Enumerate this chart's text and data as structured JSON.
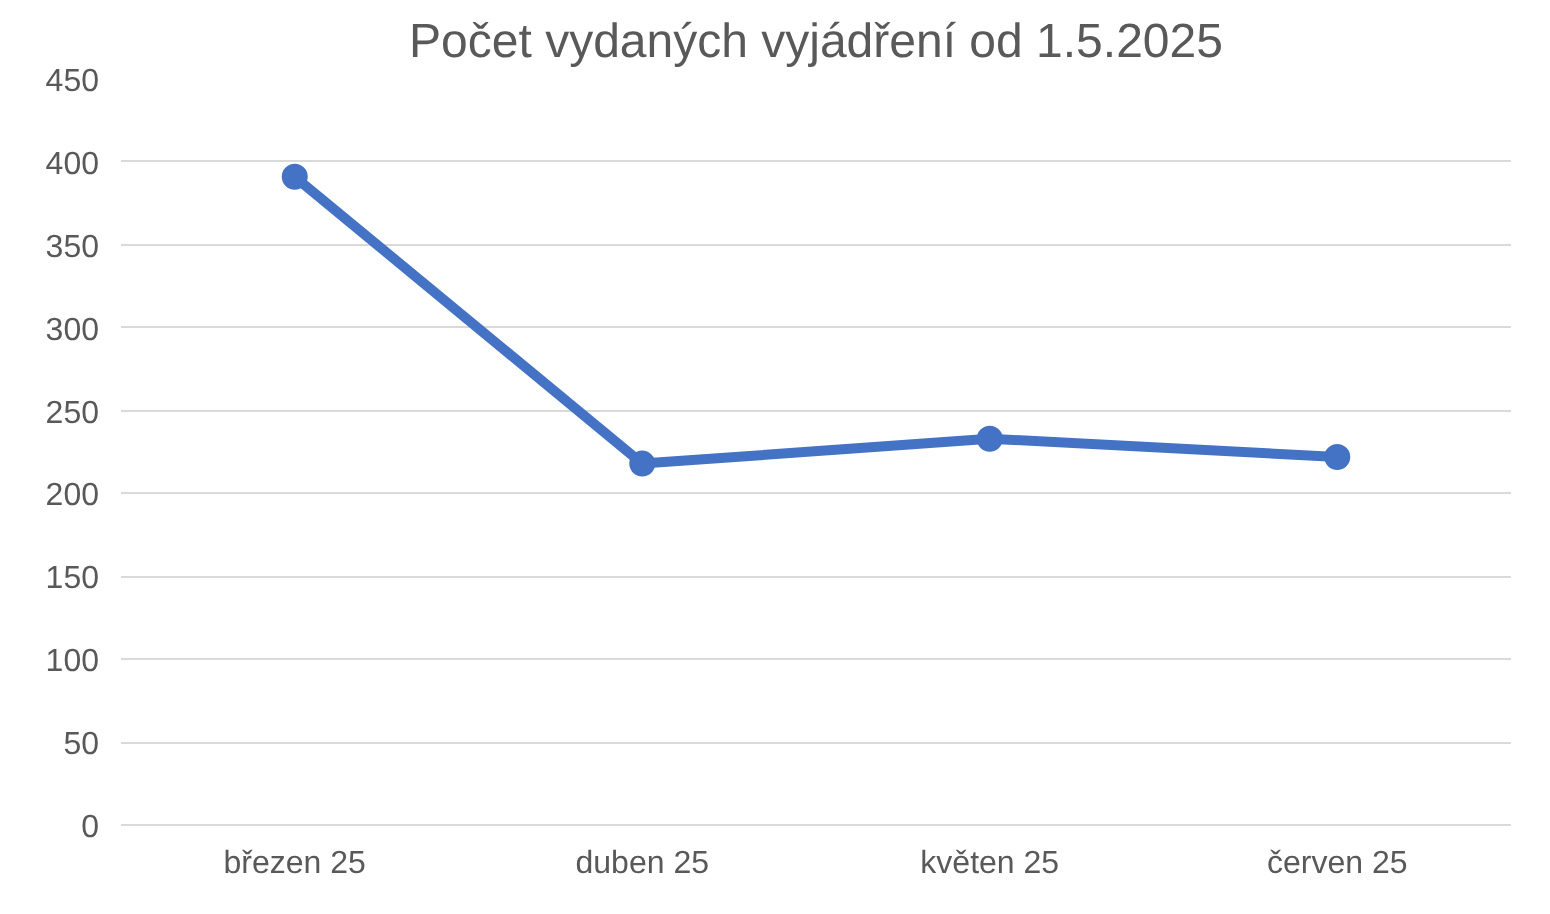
{
  "chart_data": {
    "type": "line",
    "title": "Počet vydaných vyjádření od 1.5.2025",
    "categories": [
      "březen 25",
      "duben 25",
      "květen 25",
      "červen 25"
    ],
    "series": [
      {
        "color": "#4472c4",
        "values": [
          391,
          218,
          233,
          222
        ]
      }
    ],
    "ylim": [
      0,
      450
    ],
    "yticks": [
      0,
      50,
      100,
      150,
      200,
      250,
      300,
      350,
      400,
      450
    ],
    "grid": "y",
    "marker": "circle"
  }
}
